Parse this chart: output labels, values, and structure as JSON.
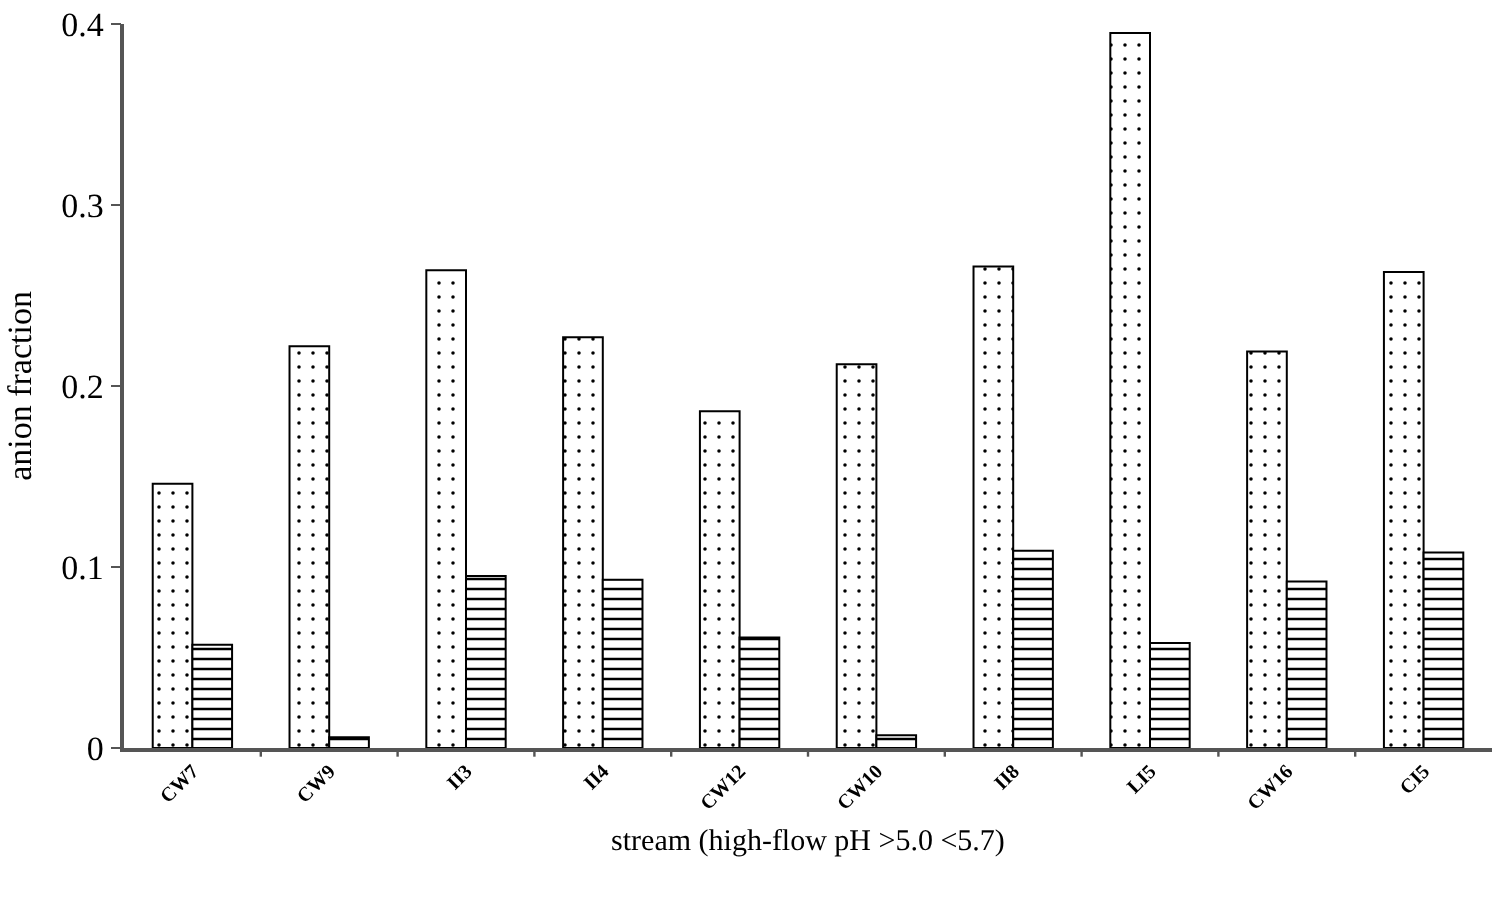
{
  "chart_data": {
    "type": "bar",
    "xlabel": "stream (high-flow pH >5.0 <5.7)",
    "ylabel": "anion fraction",
    "categories": [
      "CW7",
      "CW9",
      "II3",
      "II4",
      "CW12",
      "CW10",
      "II8",
      "LI5",
      "CW16",
      "CI5"
    ],
    "series": [
      {
        "color": "#000000",
        "values": [
          0.146,
          0.222,
          0.264,
          0.227,
          0.186,
          0.212,
          0.266,
          0.395,
          0.219,
          0.263
        ]
      },
      {
        "color": "#000000",
        "values": [
          0.057,
          0.006,
          0.095,
          0.093,
          0.061,
          0.007,
          0.109,
          0.058,
          0.092,
          0.108
        ]
      }
    ],
    "ylim": [
      0,
      0.4
    ],
    "yticks": [
      0,
      0.1,
      0.2,
      0.3,
      0.4
    ],
    "grid": false
  }
}
